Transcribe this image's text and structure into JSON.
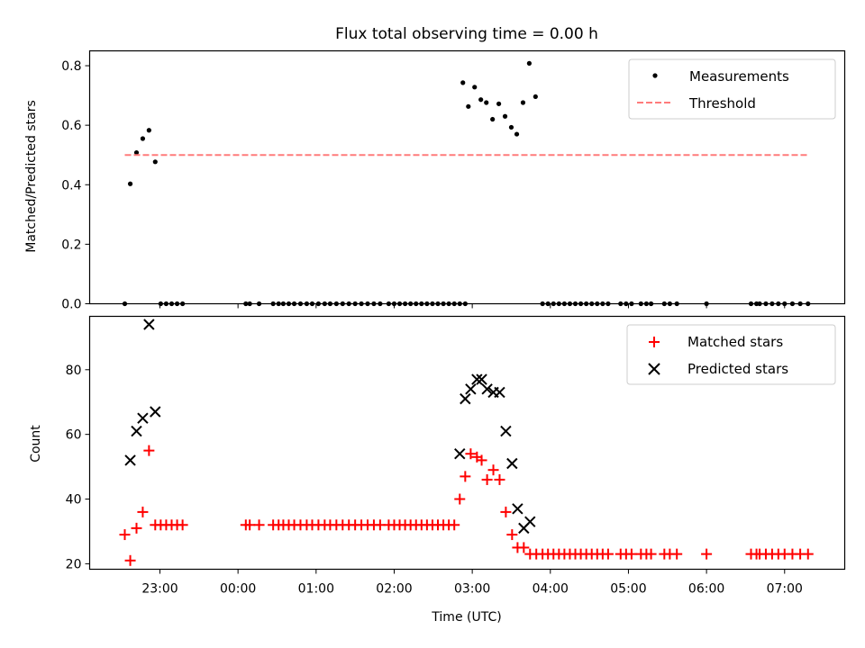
{
  "figure": {
    "title": "Flux total observing time = 0.00 h",
    "xlabel": "Time (UTC)",
    "xticks": [
      "23:00",
      "00:00",
      "01:00",
      "02:00",
      "03:00",
      "04:00",
      "05:00",
      "06:00",
      "07:00"
    ]
  },
  "chart_data": [
    {
      "type": "scatter",
      "ylabel": "Matched/Predicted stars",
      "xlim": [
        -0.9,
        8.77
      ],
      "ylim": [
        0,
        0.85
      ],
      "yticks": [
        "0.0",
        "0.2",
        "0.4",
        "0.6",
        "0.8"
      ],
      "ytick_values": [
        0,
        0.2,
        0.4,
        0.6,
        0.8
      ],
      "legend_position": "top-right",
      "series": [
        {
          "name": "Measurements",
          "marker": "dot",
          "color": "#000000",
          "points": [
            [
              -0.45,
              0.0
            ],
            [
              -0.38,
              0.403
            ],
            [
              -0.3,
              0.508
            ],
            [
              -0.22,
              0.555
            ],
            [
              -0.14,
              0.583
            ],
            [
              -0.06,
              0.477
            ],
            [
              0.01,
              0.0
            ],
            [
              0.08,
              0.0
            ],
            [
              0.15,
              0.0
            ],
            [
              0.22,
              0.0
            ],
            [
              0.29,
              0.0
            ],
            [
              1.1,
              0.0
            ],
            [
              1.15,
              0.0
            ],
            [
              1.27,
              0.0
            ],
            [
              1.45,
              0.0
            ],
            [
              1.52,
              0.0
            ],
            [
              1.58,
              0.0
            ],
            [
              1.65,
              0.0
            ],
            [
              1.72,
              0.0
            ],
            [
              1.8,
              0.0
            ],
            [
              1.88,
              0.0
            ],
            [
              1.95,
              0.0
            ],
            [
              2.03,
              0.0
            ],
            [
              2.11,
              0.0
            ],
            [
              2.18,
              0.0
            ],
            [
              2.26,
              0.0
            ],
            [
              2.34,
              0.0
            ],
            [
              2.42,
              0.0
            ],
            [
              2.5,
              0.0
            ],
            [
              2.58,
              0.0
            ],
            [
              2.66,
              0.0
            ],
            [
              2.74,
              0.0
            ],
            [
              2.82,
              0.0
            ],
            [
              2.93,
              0.0
            ],
            [
              3.0,
              0.0
            ],
            [
              3.07,
              0.0
            ],
            [
              3.14,
              0.0
            ],
            [
              3.21,
              0.0
            ],
            [
              3.28,
              0.0
            ],
            [
              3.35,
              0.0
            ],
            [
              3.42,
              0.0
            ],
            [
              3.49,
              0.0
            ],
            [
              3.56,
              0.0
            ],
            [
              3.63,
              0.0
            ],
            [
              3.7,
              0.0
            ],
            [
              3.77,
              0.0
            ],
            [
              3.84,
              0.0
            ],
            [
              3.91,
              0.0
            ],
            [
              3.88,
              0.743
            ],
            [
              3.95,
              0.663
            ],
            [
              4.03,
              0.728
            ],
            [
              4.11,
              0.686
            ],
            [
              4.18,
              0.676
            ],
            [
              4.26,
              0.62
            ],
            [
              4.34,
              0.672
            ],
            [
              4.42,
              0.63
            ],
            [
              4.5,
              0.593
            ],
            [
              4.57,
              0.57
            ],
            [
              4.65,
              0.676
            ],
            [
              4.73,
              0.808
            ],
            [
              4.81,
              0.696
            ],
            [
              4.9,
              0.0
            ],
            [
              4.97,
              0.0
            ],
            [
              5.04,
              0.0
            ],
            [
              5.11,
              0.0
            ],
            [
              5.18,
              0.0
            ],
            [
              5.25,
              0.0
            ],
            [
              5.32,
              0.0
            ],
            [
              5.39,
              0.0
            ],
            [
              5.46,
              0.0
            ],
            [
              5.53,
              0.0
            ],
            [
              5.6,
              0.0
            ],
            [
              5.67,
              0.0
            ],
            [
              5.74,
              0.0
            ],
            [
              5.9,
              0.0
            ],
            [
              5.97,
              0.0
            ],
            [
              6.04,
              0.0
            ],
            [
              6.16,
              0.0
            ],
            [
              6.23,
              0.0
            ],
            [
              6.29,
              0.0
            ],
            [
              6.46,
              0.0
            ],
            [
              6.53,
              0.0
            ],
            [
              6.62,
              0.0
            ],
            [
              7.0,
              0.0
            ],
            [
              7.57,
              0.0
            ],
            [
              7.64,
              0.0
            ],
            [
              7.68,
              0.0
            ],
            [
              7.76,
              0.0
            ],
            [
              7.84,
              0.0
            ],
            [
              7.92,
              0.0
            ],
            [
              8.0,
              0.0
            ],
            [
              8.1,
              0.0
            ],
            [
              8.2,
              0.0
            ],
            [
              8.3,
              0.0
            ]
          ]
        },
        {
          "name": "Threshold",
          "type": "line",
          "style": "dashed",
          "color": "#ff7b7b",
          "x": [
            -0.45,
            8.3
          ],
          "y": [
            0.5,
            0.5
          ]
        }
      ]
    },
    {
      "type": "scatter",
      "ylabel": "Count",
      "xlim": [
        -0.9,
        8.77
      ],
      "ylim": [
        18.3,
        96.5
      ],
      "yticks": [
        "20",
        "40",
        "60",
        "80"
      ],
      "ytick_values": [
        20,
        40,
        60,
        80
      ],
      "legend_position": "top-right",
      "series": [
        {
          "name": "Matched stars",
          "marker": "plus",
          "color": "#ff0000",
          "points": [
            [
              -0.45,
              29
            ],
            [
              -0.38,
              21
            ],
            [
              -0.3,
              31
            ],
            [
              -0.22,
              36
            ],
            [
              -0.14,
              55
            ],
            [
              -0.06,
              32
            ],
            [
              0.01,
              32
            ],
            [
              0.08,
              32
            ],
            [
              0.15,
              32
            ],
            [
              0.22,
              32
            ],
            [
              0.29,
              32
            ],
            [
              1.1,
              32
            ],
            [
              1.15,
              32
            ],
            [
              1.27,
              32
            ],
            [
              1.45,
              32
            ],
            [
              1.52,
              32
            ],
            [
              1.58,
              32
            ],
            [
              1.65,
              32
            ],
            [
              1.72,
              32
            ],
            [
              1.8,
              32
            ],
            [
              1.88,
              32
            ],
            [
              1.95,
              32
            ],
            [
              2.03,
              32
            ],
            [
              2.11,
              32
            ],
            [
              2.18,
              32
            ],
            [
              2.26,
              32
            ],
            [
              2.34,
              32
            ],
            [
              2.42,
              32
            ],
            [
              2.5,
              32
            ],
            [
              2.58,
              32
            ],
            [
              2.66,
              32
            ],
            [
              2.74,
              32
            ],
            [
              2.82,
              32
            ],
            [
              2.93,
              32
            ],
            [
              3.0,
              32
            ],
            [
              3.07,
              32
            ],
            [
              3.14,
              32
            ],
            [
              3.21,
              32
            ],
            [
              3.28,
              32
            ],
            [
              3.35,
              32
            ],
            [
              3.42,
              32
            ],
            [
              3.49,
              32
            ],
            [
              3.56,
              32
            ],
            [
              3.63,
              32
            ],
            [
              3.7,
              32
            ],
            [
              3.77,
              32
            ],
            [
              3.84,
              40
            ],
            [
              3.91,
              47
            ],
            [
              3.98,
              54
            ],
            [
              4.06,
              53
            ],
            [
              4.12,
              52
            ],
            [
              4.19,
              46
            ],
            [
              4.27,
              49
            ],
            [
              4.35,
              46
            ],
            [
              4.43,
              36
            ],
            [
              4.51,
              29
            ],
            [
              4.58,
              25
            ],
            [
              4.66,
              25
            ],
            [
              4.74,
              23
            ],
            [
              4.82,
              23
            ],
            [
              4.9,
              23
            ],
            [
              4.97,
              23
            ],
            [
              5.04,
              23
            ],
            [
              5.11,
              23
            ],
            [
              5.18,
              23
            ],
            [
              5.25,
              23
            ],
            [
              5.32,
              23
            ],
            [
              5.39,
              23
            ],
            [
              5.46,
              23
            ],
            [
              5.53,
              23
            ],
            [
              5.6,
              23
            ],
            [
              5.67,
              23
            ],
            [
              5.74,
              23
            ],
            [
              5.9,
              23
            ],
            [
              5.97,
              23
            ],
            [
              6.04,
              23
            ],
            [
              6.16,
              23
            ],
            [
              6.23,
              23
            ],
            [
              6.29,
              23
            ],
            [
              6.46,
              23
            ],
            [
              6.53,
              23
            ],
            [
              6.62,
              23
            ],
            [
              7.0,
              23
            ],
            [
              7.57,
              23
            ],
            [
              7.64,
              23
            ],
            [
              7.68,
              23
            ],
            [
              7.76,
              23
            ],
            [
              7.84,
              23
            ],
            [
              7.92,
              23
            ],
            [
              8.0,
              23
            ],
            [
              8.1,
              23
            ],
            [
              8.2,
              23
            ],
            [
              8.3,
              23
            ]
          ]
        },
        {
          "name": "Predicted stars",
          "marker": "x",
          "color": "#000000",
          "points": [
            [
              -0.38,
              52
            ],
            [
              -0.3,
              61
            ],
            [
              -0.22,
              65
            ],
            [
              -0.14,
              94
            ],
            [
              -0.06,
              67
            ],
            [
              3.84,
              54
            ],
            [
              3.91,
              71
            ],
            [
              3.98,
              74
            ],
            [
              4.06,
              77
            ],
            [
              4.12,
              77
            ],
            [
              4.19,
              74
            ],
            [
              4.27,
              73
            ],
            [
              4.35,
              73
            ],
            [
              4.43,
              61
            ],
            [
              4.51,
              51
            ],
            [
              4.58,
              37
            ],
            [
              4.66,
              31
            ],
            [
              4.74,
              33
            ]
          ]
        }
      ]
    }
  ]
}
